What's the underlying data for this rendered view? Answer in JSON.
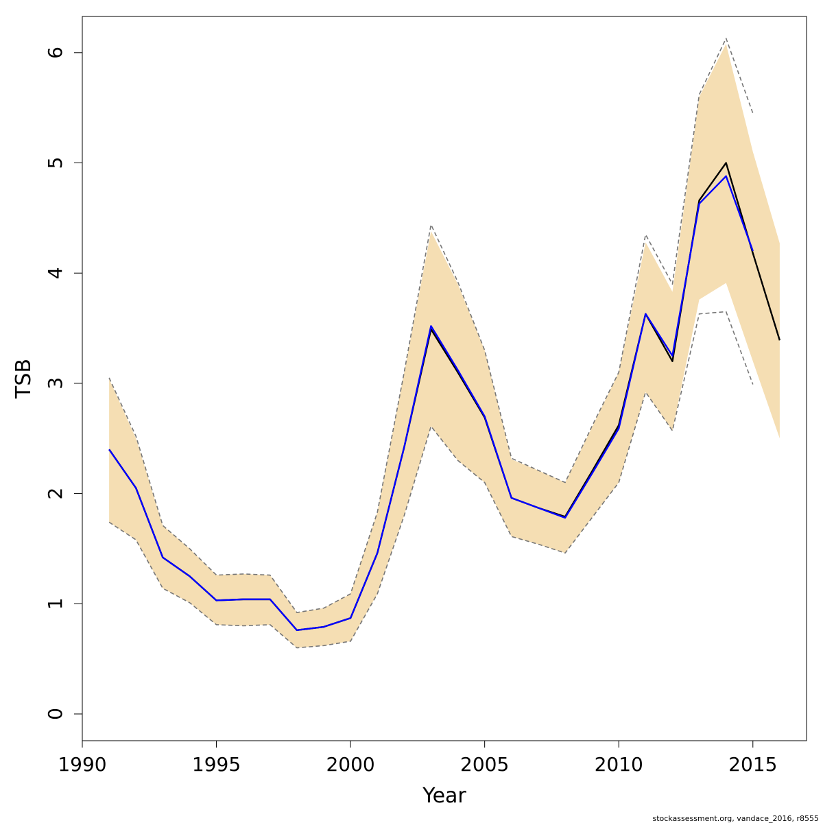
{
  "chart_data": {
    "type": "line",
    "title": "",
    "xlabel": "Year",
    "ylabel": "TSB",
    "xlim": [
      1990,
      2017
    ],
    "ylim": [
      0,
      6.3
    ],
    "xticks": [
      1990,
      1995,
      2000,
      2005,
      2010,
      2015
    ],
    "yticks": [
      0,
      1,
      2,
      3,
      4,
      5,
      6
    ],
    "grid": false,
    "colors": {
      "band": "#f5deb3",
      "estimate": "#000000",
      "retro": "#0000ff",
      "bounds": "#777777"
    },
    "band": {
      "x": [
        1991,
        1992,
        1993,
        1994,
        1995,
        1996,
        1997,
        1998,
        1999,
        2000,
        2001,
        2002,
        2003,
        2004,
        2005,
        2006,
        2007,
        2008,
        2009,
        2010,
        2011,
        2012,
        2013,
        2014,
        2015,
        2016
      ],
      "lower": [
        1.74,
        1.58,
        1.14,
        1.01,
        0.81,
        0.8,
        0.81,
        0.6,
        0.62,
        0.66,
        1.09,
        1.8,
        2.61,
        2.3,
        2.1,
        1.61,
        1.54,
        1.46,
        1.78,
        2.1,
        2.92,
        2.57,
        3.76,
        3.91,
        3.2,
        2.5
      ],
      "upper": [
        3.04,
        2.5,
        1.71,
        1.5,
        1.26,
        1.27,
        1.26,
        0.92,
        0.96,
        1.09,
        1.83,
        3.1,
        4.38,
        3.9,
        3.3,
        2.31,
        2.21,
        2.1,
        2.6,
        3.1,
        4.28,
        3.83,
        5.6,
        6.08,
        5.1,
        4.27
      ]
    },
    "series": [
      {
        "x": [
          1991,
          1992,
          1993,
          1994,
          1995,
          1996,
          1997,
          1998,
          1999,
          2000,
          2001,
          2002,
          2003,
          2004,
          2005,
          2006,
          2007,
          2008,
          2009,
          2010,
          2011,
          2012,
          2013,
          2014,
          2015,
          2016
        ],
        "values": [
          2.4,
          2.05,
          1.42,
          1.25,
          1.03,
          1.04,
          1.04,
          0.76,
          0.79,
          0.87,
          1.46,
          2.42,
          3.49,
          3.1,
          2.69,
          1.96,
          1.87,
          1.79,
          2.2,
          2.62,
          3.63,
          3.2,
          4.66,
          5.0,
          4.18,
          3.39
        ],
        "style": "solid",
        "color": "#000000"
      },
      {
        "x": [
          1991,
          1992,
          1993,
          1994,
          1995,
          1996,
          1997,
          1998,
          1999,
          2000,
          2001,
          2002,
          2003,
          2004,
          2005,
          2006,
          2007,
          2008,
          2009,
          2010,
          2011,
          2012,
          2013,
          2014,
          2015
        ],
        "values": [
          2.4,
          2.05,
          1.42,
          1.25,
          1.03,
          1.04,
          1.04,
          0.76,
          0.79,
          0.87,
          1.46,
          2.42,
          3.52,
          3.12,
          2.7,
          1.96,
          1.87,
          1.78,
          2.18,
          2.59,
          3.63,
          3.25,
          4.63,
          4.88,
          4.2
        ],
        "style": "solid",
        "color": "#0000ff"
      },
      {
        "x": [
          1991,
          1992,
          1993,
          1994,
          1995,
          1996,
          1997,
          1998,
          1999,
          2000,
          2001,
          2002,
          2003,
          2004,
          2005,
          2006,
          2007,
          2008,
          2009,
          2010,
          2011,
          2012,
          2013,
          2014,
          2015
        ],
        "values": [
          3.05,
          2.52,
          1.71,
          1.5,
          1.26,
          1.27,
          1.26,
          0.92,
          0.96,
          1.09,
          1.83,
          3.1,
          4.44,
          3.92,
          3.3,
          2.32,
          2.21,
          2.1,
          2.61,
          3.1,
          4.35,
          3.9,
          5.62,
          6.13,
          5.45
        ],
        "style": "dashed",
        "color": "#777777"
      },
      {
        "x": [
          1991,
          1992,
          1993,
          1994,
          1995,
          1996,
          1997,
          1998,
          1999,
          2000,
          2001,
          2002,
          2003,
          2004,
          2005,
          2006,
          2007,
          2008,
          2009,
          2010,
          2011,
          2012,
          2013,
          2014,
          2015
        ],
        "values": [
          1.74,
          1.58,
          1.14,
          1.01,
          0.81,
          0.8,
          0.81,
          0.6,
          0.62,
          0.66,
          1.09,
          1.8,
          2.61,
          2.3,
          2.1,
          1.61,
          1.54,
          1.46,
          1.78,
          2.1,
          2.92,
          2.57,
          3.63,
          3.65,
          2.99
        ],
        "style": "dashed",
        "color": "#777777"
      }
    ]
  },
  "footer": {
    "credit": "stockassessment.org, vandace_2016, r8555"
  }
}
